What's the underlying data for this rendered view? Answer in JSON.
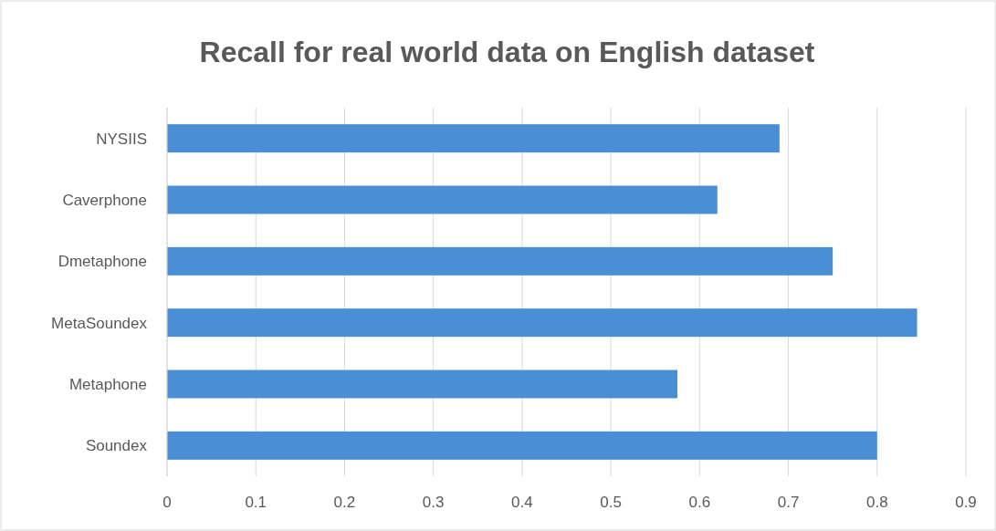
{
  "chart_data": {
    "type": "bar",
    "orientation": "horizontal",
    "title": "Recall for real world data on English dataset",
    "categories": [
      "NYSIIS",
      "Caverphone",
      "Dmetaphone",
      "MetaSoundex",
      "Metaphone",
      "Soundex"
    ],
    "values": [
      0.69,
      0.62,
      0.75,
      0.845,
      0.575,
      0.8
    ],
    "color": "#4a8fd6",
    "xlim": [
      0,
      0.9
    ],
    "xticks": [
      0,
      0.1,
      0.2,
      0.3,
      0.4,
      0.5,
      0.6,
      0.7,
      0.8,
      0.9
    ],
    "grid": "x"
  }
}
